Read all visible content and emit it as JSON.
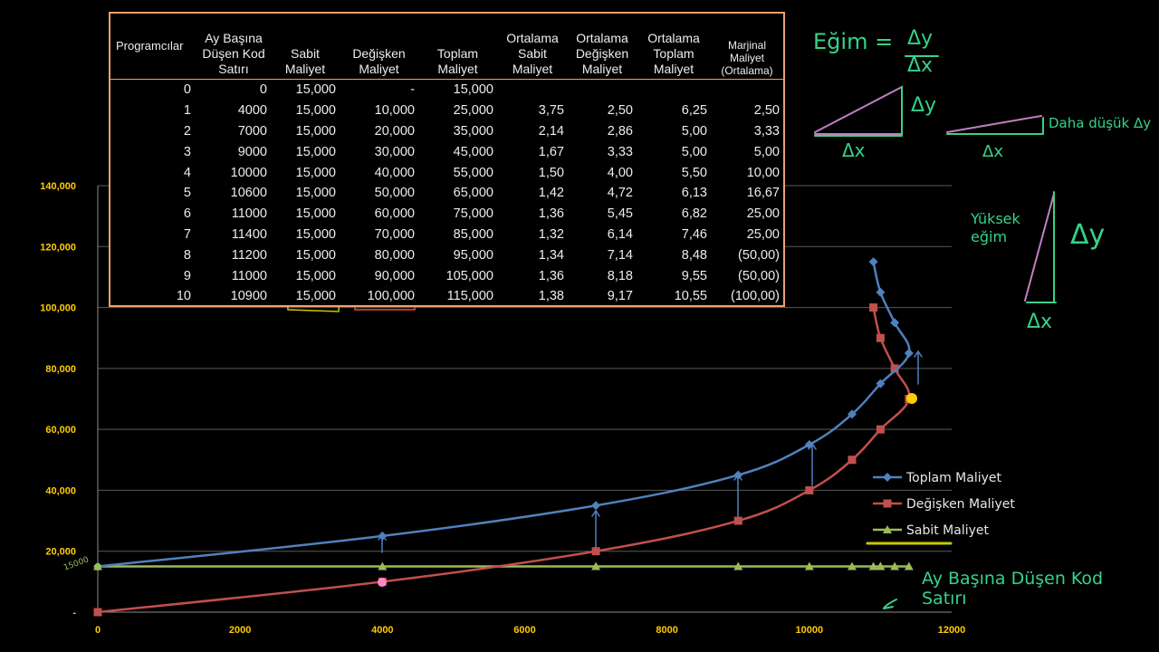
{
  "chart_data": {
    "type": "line",
    "x_ticks": [
      "0",
      "2000",
      "4000",
      "6000",
      "8000",
      "10000",
      "12000"
    ],
    "y_ticks": [
      "-",
      "20,000",
      "40,000",
      "60,000",
      "80,000",
      "100,000",
      "120,000",
      "140,000"
    ],
    "xlim": [
      0,
      12000
    ],
    "ylim": [
      0,
      140000
    ],
    "grid": true,
    "legend_position": "right",
    "x": [
      0,
      4000,
      7000,
      9000,
      10000,
      10600,
      11000,
      11400,
      11200,
      11000,
      10900
    ],
    "series": [
      {
        "name": "Toplam Maliyet",
        "color": "#4f81bd",
        "marker": "diamond",
        "values": [
          15000,
          25000,
          35000,
          45000,
          55000,
          65000,
          75000,
          85000,
          95000,
          105000,
          115000
        ]
      },
      {
        "name": "Değişken Maliyet",
        "color": "#c0504d",
        "marker": "square",
        "values": [
          0,
          10000,
          20000,
          30000,
          40000,
          50000,
          60000,
          70000,
          80000,
          90000,
          100000
        ]
      },
      {
        "name": "Sabit Maliyet",
        "color": "#9bbb59",
        "marker": "triangle",
        "values": [
          15000,
          15000,
          15000,
          15000,
          15000,
          15000,
          15000,
          15000,
          15000,
          15000,
          15000
        ]
      }
    ]
  },
  "table": {
    "headers": [
      "Programcılar",
      "Ay Başına Düşen Kod Satırı",
      "Sabit Maliyet",
      "Değişken Maliyet",
      "Toplam Maliyet",
      "Ortalama Sabit Maliyet",
      "Ortalama Değişken Maliyet",
      "Ortalama Toplam Maliyet",
      "Marjinal Maliyet (Ortalama)"
    ],
    "rows": [
      [
        "0",
        "0",
        "15,000",
        "-",
        "15,000",
        "",
        "",
        "",
        ""
      ],
      [
        "1",
        "4000",
        "15,000",
        "10,000",
        "25,000",
        "3,75",
        "2,50",
        "6,25",
        "2,50"
      ],
      [
        "2",
        "7000",
        "15,000",
        "20,000",
        "35,000",
        "2,14",
        "2,86",
        "5,00",
        "3,33"
      ],
      [
        "3",
        "9000",
        "15,000",
        "30,000",
        "45,000",
        "1,67",
        "3,33",
        "5,00",
        "5,00"
      ],
      [
        "4",
        "10000",
        "15,000",
        "40,000",
        "55,000",
        "1,50",
        "4,00",
        "5,50",
        "10,00"
      ],
      [
        "5",
        "10600",
        "15,000",
        "50,000",
        "65,000",
        "1,42",
        "4,72",
        "6,13",
        "16,67"
      ],
      [
        "6",
        "11000",
        "15,000",
        "60,000",
        "75,000",
        "1,36",
        "5,45",
        "6,82",
        "25,00"
      ],
      [
        "7",
        "11400",
        "15,000",
        "70,000",
        "85,000",
        "1,32",
        "6,14",
        "7,46",
        "25,00"
      ],
      [
        "8",
        "11200",
        "15,000",
        "80,000",
        "95,000",
        "1,34",
        "7,14",
        "8,48",
        "(50,00)"
      ],
      [
        "9",
        "11000",
        "15,000",
        "90,000",
        "105,000",
        "1,36",
        "8,18",
        "9,55",
        "(50,00)"
      ],
      [
        "10",
        "10900",
        "15,000",
        "100,000",
        "115,000",
        "1,38",
        "9,17",
        "10,55",
        "(100,00)"
      ]
    ]
  },
  "annotations": {
    "slope_formula": "Eğim =",
    "delta_y": "Δy",
    "delta_x": "Δx",
    "lower_slope": "Daha düşük Δy",
    "high_slope": "Yüksek eğim",
    "x_axis_note": "Ay Başına Düşen Kod Satırı",
    "y_note": "15000"
  },
  "colors": {
    "annotation": "#35d38a",
    "table_border": "#f0a070",
    "axis_labels": "#ffcc00"
  }
}
